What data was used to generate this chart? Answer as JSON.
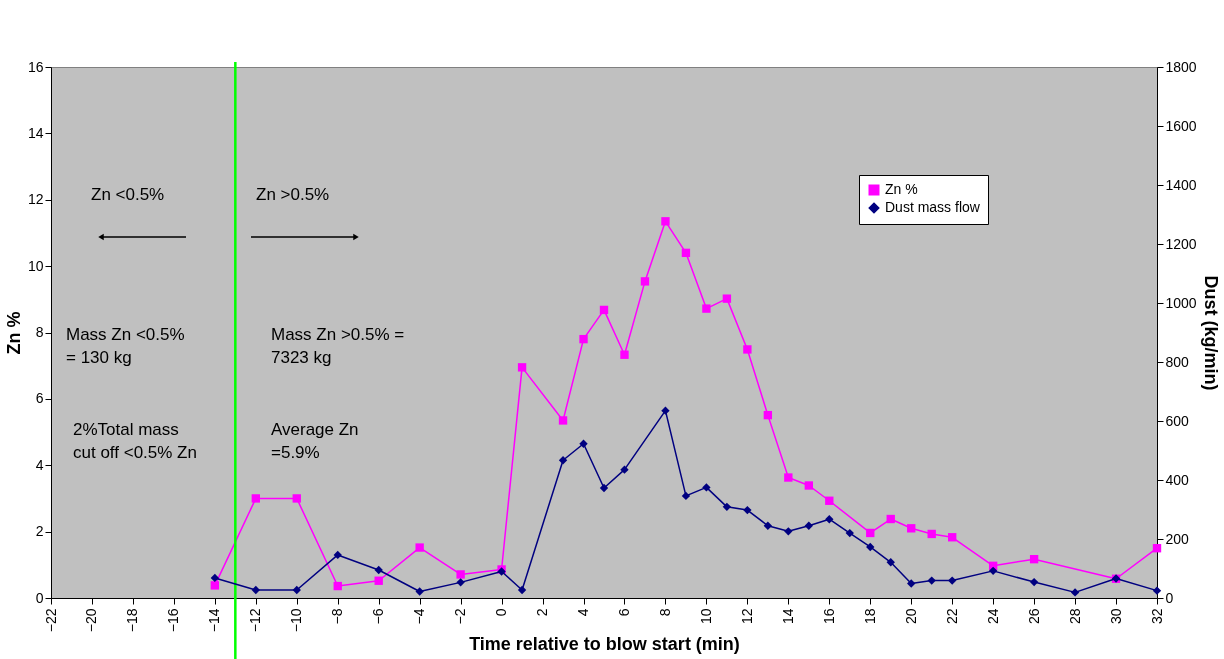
{
  "chart_data": {
    "type": "line",
    "xlabel": "Time relative to blow start (min)",
    "ylabel": "Zn %",
    "y2label": "Dust (kg/min)",
    "xlim": [
      -22,
      32
    ],
    "xticks": [
      -22,
      -20,
      -18,
      -16,
      -14,
      -12,
      -10,
      -8,
      -6,
      -4,
      -2,
      0,
      2,
      4,
      6,
      8,
      10,
      12,
      14,
      16,
      18,
      20,
      22,
      24,
      26,
      28,
      30,
      32
    ],
    "ylim": [
      0,
      16
    ],
    "yticks": [
      0,
      2,
      4,
      6,
      8,
      10,
      12,
      14,
      16
    ],
    "y2lim": [
      0,
      1800
    ],
    "y2ticks": [
      0,
      200,
      400,
      600,
      800,
      1000,
      1200,
      1400,
      1600,
      1800
    ],
    "grid": false,
    "legend": "top right",
    "series": [
      {
        "name": "Zn %",
        "color": "#ff00ff",
        "marker": "square",
        "x": [
          -14,
          -12,
          -10,
          -8,
          -6,
          -4,
          -2,
          0,
          1,
          3,
          4,
          5,
          6,
          7,
          8,
          9,
          10,
          11,
          12,
          13,
          14,
          15,
          16,
          18,
          19,
          20,
          21,
          22,
          24,
          26,
          30,
          32
        ],
        "values": [
          0.38,
          3.0,
          3.0,
          0.36,
          0.52,
          1.52,
          0.71,
          0.86,
          6.95,
          5.35,
          7.8,
          8.68,
          7.33,
          9.54,
          11.35,
          10.4,
          8.72,
          9.02,
          7.49,
          5.51,
          3.63,
          3.39,
          2.93,
          1.96,
          2.38,
          2.1,
          1.93,
          1.83,
          0.97,
          1.17,
          0.58,
          1.5
        ]
      },
      {
        "name": "Dust mass flow",
        "color": "#000080",
        "marker": "diamond",
        "axis": "y2",
        "x": [
          -14,
          -12,
          -10,
          -8,
          -6,
          -4,
          -2,
          0,
          1,
          3,
          4,
          5,
          6,
          8,
          9,
          10,
          11,
          12,
          13,
          14,
          15,
          16,
          17,
          18,
          19,
          20,
          21,
          22,
          24,
          26,
          28,
          30,
          32
        ],
        "values": [
          68,
          27,
          27,
          146,
          95,
          22,
          53,
          90,
          27,
          467,
          523,
          373,
          435,
          635,
          346,
          375,
          309,
          298,
          245,
          226,
          245,
          267,
          220,
          173,
          121,
          49,
          59,
          59,
          92,
          54,
          19,
          66,
          25
        ]
      }
    ],
    "ref_lines": [
      {
        "axis": "x",
        "value": -13,
        "color": "#00ff00"
      }
    ],
    "annotations": [
      "Zn <0.5%",
      "Zn >0.5%",
      "Mass Zn <0.5%\n= 130 kg",
      "Mass Zn >0.5% =\n7323 kg",
      "2%Total mass\ncut off <0.5% Zn",
      "Average Zn\n=5.9%"
    ]
  }
}
